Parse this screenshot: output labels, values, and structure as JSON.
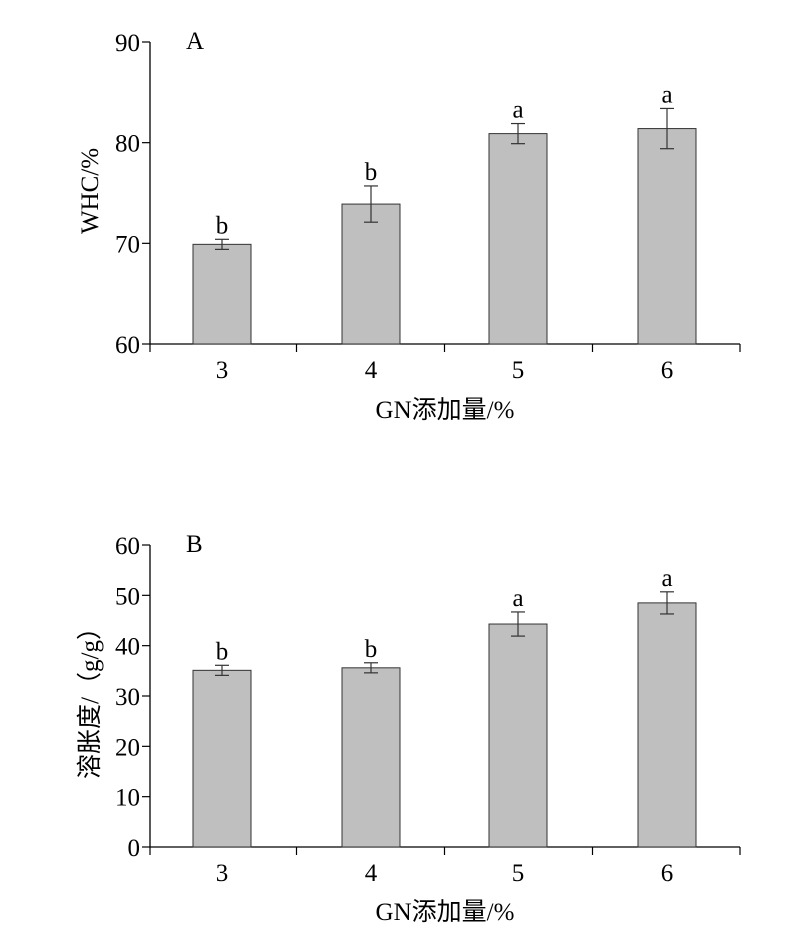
{
  "colors": {
    "bar_fill": "#bfbfbf",
    "bar_stroke": "#333333",
    "axis": "#000000"
  },
  "chart_data": [
    {
      "type": "bar",
      "panel_label": "A",
      "categories": [
        "3",
        "4",
        "5",
        "6"
      ],
      "values": [
        69.9,
        73.9,
        80.9,
        81.4
      ],
      "errors": [
        0.5,
        1.8,
        1.0,
        2.0
      ],
      "significance": [
        "b",
        "b",
        "a",
        "a"
      ],
      "xlabel": "GN添加量/%",
      "ylabel": "WHC/%",
      "ylim": [
        60,
        90
      ],
      "yticks": [
        60,
        70,
        80,
        90
      ],
      "grid": false,
      "legend": "none"
    },
    {
      "type": "bar",
      "panel_label": "B",
      "categories": [
        "3",
        "4",
        "5",
        "6"
      ],
      "values": [
        35.1,
        35.6,
        44.3,
        48.5
      ],
      "errors": [
        1.0,
        1.0,
        2.4,
        2.2
      ],
      "significance": [
        "b",
        "b",
        "a",
        "a"
      ],
      "xlabel": "GN添加量/%",
      "ylabel": "溶胀度/（g/g）",
      "ylim": [
        0,
        60
      ],
      "yticks": [
        0,
        10,
        20,
        30,
        40,
        50,
        60
      ],
      "grid": false,
      "legend": "none"
    }
  ]
}
